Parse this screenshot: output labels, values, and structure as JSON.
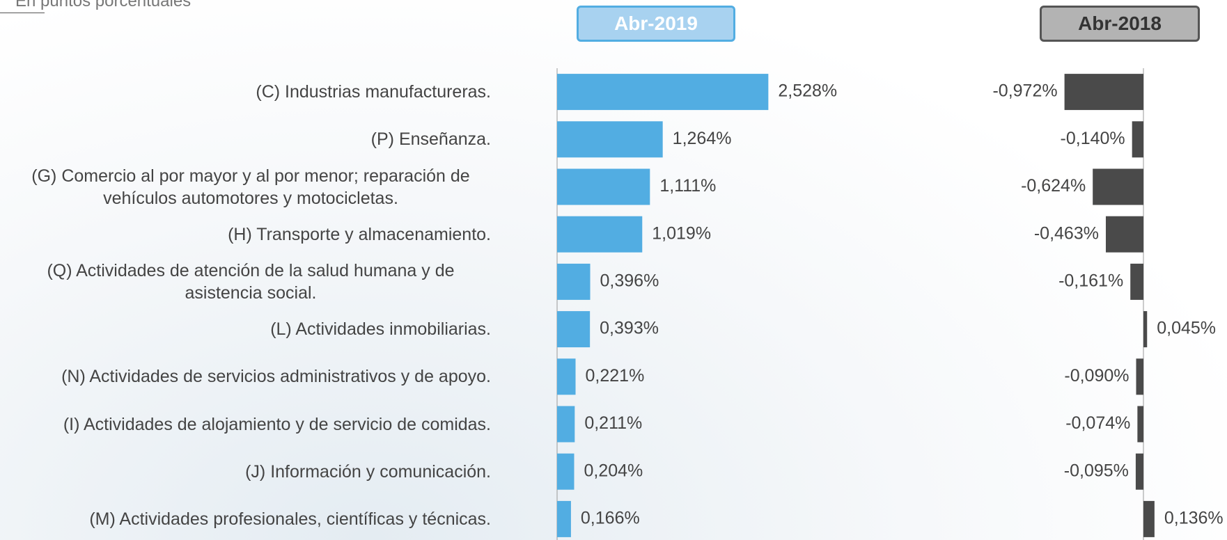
{
  "chart_data": {
    "type": "bar",
    "orientation": "horizontal",
    "note": "En puntos porcentuales",
    "categories": [
      "(C) Industrias manufactureras.",
      "(P) Enseñanza.",
      "(G) Comercio al por mayor y al por menor; reparación de vehículos automotores y motocicletas.",
      "(H) Transporte y almacenamiento.",
      "(Q) Actividades de atención de la salud humana y de asistencia social.",
      "(L) Actividades inmobiliarias.",
      "(N) Actividades de servicios administrativos y de apoyo.",
      "(I) Actividades de alojamiento y de servicio de comidas.",
      "(J) Información y comunicación.",
      "(M) Actividades profesionales, científicas y técnicas."
    ],
    "series": [
      {
        "name": "Abr-2019",
        "color": "#52ade2",
        "xlim": [
          0,
          3.5
        ],
        "values": [
          2.528,
          1.264,
          1.111,
          1.019,
          0.396,
          0.393,
          0.221,
          0.211,
          0.204,
          0.166
        ],
        "value_labels": [
          "2,528%",
          "1,264%",
          "1,111%",
          "1,019%",
          "0,396%",
          "0,393%",
          "0,221%",
          "0,211%",
          "0,204%",
          "0,166%"
        ]
      },
      {
        "name": "Abr-2018",
        "color": "#4a4a4a",
        "xlim": [
          -1.2,
          0.6
        ],
        "values": [
          -0.972,
          -0.14,
          -0.624,
          -0.463,
          -0.161,
          0.045,
          -0.09,
          -0.074,
          -0.095,
          0.136
        ],
        "value_labels": [
          "-0,972%",
          "-0,140%",
          "-0,624%",
          "-0,463%",
          "-0,161%",
          "0,045%",
          "-0,090%",
          "-0,074%",
          "-0,095%",
          "0,136%"
        ]
      }
    ]
  }
}
